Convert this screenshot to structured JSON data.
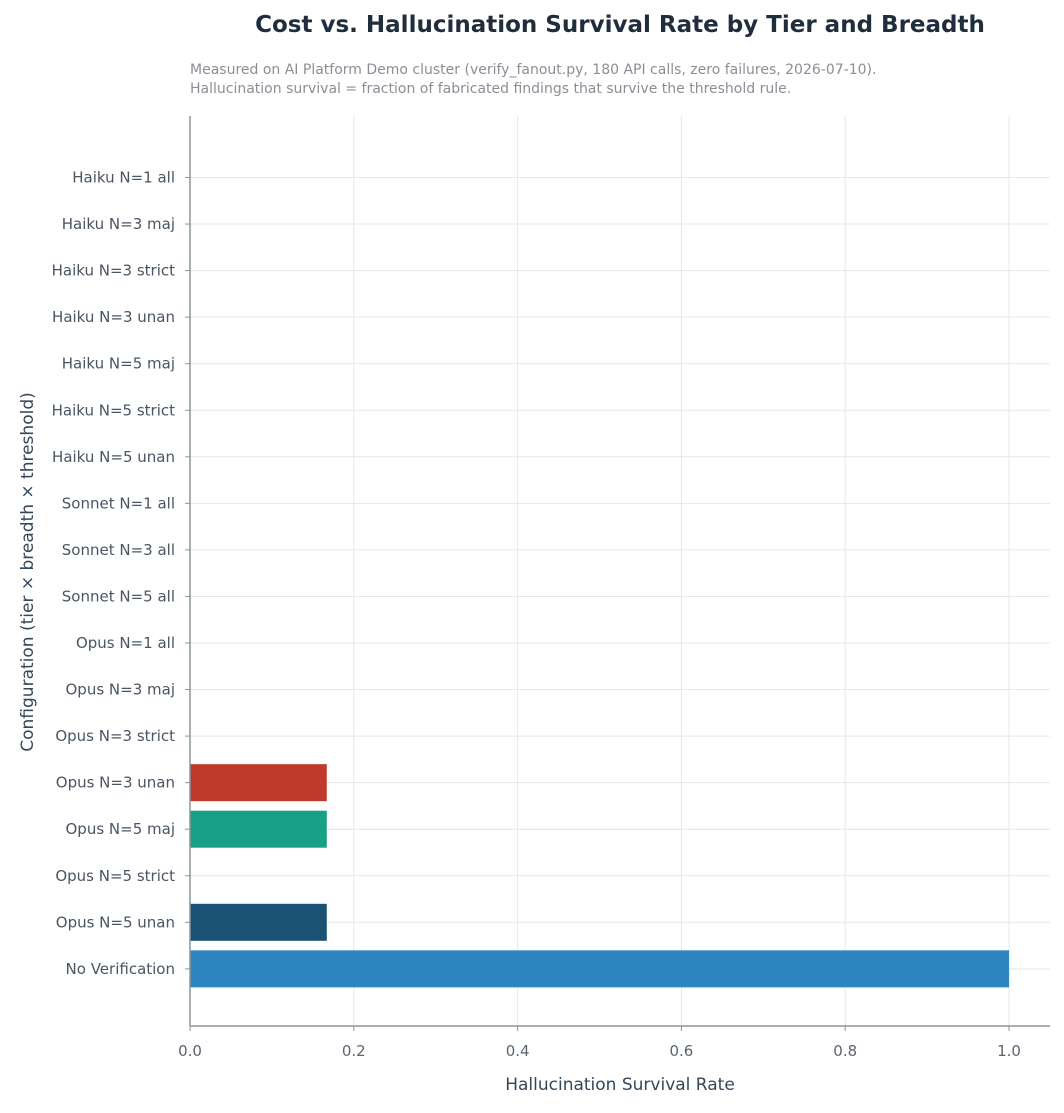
{
  "chart_data": {
    "type": "bar",
    "orientation": "horizontal",
    "title": "Cost vs. Hallucination Survival Rate by Tier and Breadth",
    "subtitle": [
      "Measured on AI Platform Demo cluster (verify_fanout.py, 180 API calls, zero failures, 2026-07-10).",
      "Hallucination survival = fraction of fabricated findings that survive the threshold rule."
    ],
    "xlabel": "Hallucination Survival Rate",
    "ylabel": "Configuration (tier × breadth × threshold)",
    "xlim": [
      0,
      1.05
    ],
    "xticks": [
      "0.0",
      "0.2",
      "0.4",
      "0.6",
      "0.8",
      "1.0"
    ],
    "xtick_values": [
      0,
      0.2,
      0.4,
      0.6,
      0.8,
      1.0
    ],
    "grid": true,
    "categories": [
      "Haiku N=1 all",
      "Haiku N=3 maj",
      "Haiku N=3 strict",
      "Haiku N=3 unan",
      "Haiku N=5 maj",
      "Haiku N=5 strict",
      "Haiku N=5 unan",
      "Sonnet N=1 all",
      "Sonnet N=3 all",
      "Sonnet N=5 all",
      "Opus N=1 all",
      "Opus N=3 maj",
      "Opus N=3 strict",
      "Opus N=3 unan",
      "Opus N=5 maj",
      "Opus N=5 strict",
      "Opus N=5 unan",
      "No Verification"
    ],
    "values": [
      0,
      0,
      0,
      0,
      0,
      0,
      0,
      0,
      0,
      0,
      0,
      0,
      0,
      0.167,
      0.167,
      0,
      0.167,
      1.0
    ],
    "colors": [
      "#cccccc",
      "#cccccc",
      "#cccccc",
      "#cccccc",
      "#cccccc",
      "#cccccc",
      "#cccccc",
      "#cccccc",
      "#cccccc",
      "#cccccc",
      "#cccccc",
      "#cccccc",
      "#cccccc",
      "#c0392b",
      "#16a085",
      "#cccccc",
      "#1a5276",
      "#2e86c1"
    ]
  }
}
